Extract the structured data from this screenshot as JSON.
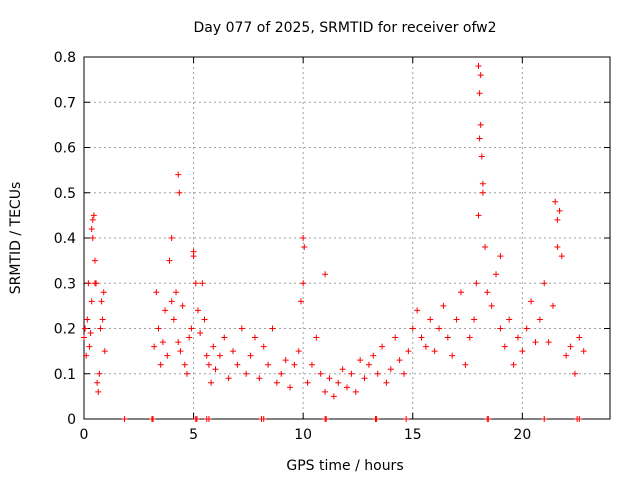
{
  "chart_data": {
    "type": "scatter",
    "title": "Day 077 of 2025, SRMTID for receiver ofw2",
    "xlabel": "GPS time / hours",
    "ylabel": "SRMTID / TECUs",
    "xlim": [
      0,
      24
    ],
    "ylim": [
      0,
      0.8
    ],
    "x_ticks": [
      0,
      5,
      10,
      15,
      20
    ],
    "x_tick_labels": [
      "0",
      "5",
      "10",
      "15",
      "20"
    ],
    "y_ticks": [
      0,
      0.1,
      0.2,
      0.3,
      0.4,
      0.5,
      0.6,
      0.7,
      0.8
    ],
    "y_tick_labels": [
      "0",
      "0.1",
      "0.2",
      "0.3",
      "0.4",
      "0.5",
      "0.6",
      "0.7",
      "0.8"
    ],
    "grid": true,
    "marker": "+",
    "color": "#ff0000",
    "series": [
      {
        "name": "SRMTID",
        "x": [
          0.0,
          0.05,
          0.1,
          0.15,
          0.2,
          0.25,
          0.3,
          0.35,
          0.4,
          0.45,
          0.5,
          0.55,
          0.6,
          0.65,
          0.7,
          0.75,
          0.8,
          0.85,
          0.9,
          0.95,
          3.2,
          3.3,
          3.4,
          3.5,
          3.6,
          3.7,
          3.8,
          3.9,
          4.0,
          4.1,
          4.2,
          4.3,
          4.4,
          4.5,
          4.6,
          4.7,
          4.8,
          4.9,
          5.0,
          5.1,
          5.2,
          5.3,
          5.4,
          5.5,
          5.6,
          5.7,
          5.8,
          5.9,
          6.0,
          6.2,
          6.4,
          6.6,
          6.8,
          7.0,
          7.2,
          7.4,
          7.6,
          7.8,
          8.0,
          8.2,
          8.4,
          8.6,
          8.8,
          9.0,
          9.2,
          9.4,
          9.6,
          9.8,
          10.0,
          10.2,
          10.4,
          10.6,
          10.8,
          11.0,
          11.2,
          11.4,
          11.6,
          11.8,
          12.0,
          12.2,
          12.4,
          12.6,
          12.8,
          13.0,
          13.2,
          13.4,
          13.6,
          13.8,
          14.0,
          14.2,
          14.4,
          14.6,
          14.8,
          15.0,
          15.2,
          15.4,
          15.6,
          15.8,
          16.0,
          16.2,
          16.4,
          16.6,
          16.8,
          17.0,
          17.2,
          17.4,
          17.6,
          17.8,
          17.9,
          18.0,
          18.05,
          18.1,
          18.2,
          18.3,
          18.4,
          18.6,
          18.8,
          19.0,
          19.2,
          19.4,
          19.6,
          19.8,
          20.0,
          20.2,
          20.4,
          20.6,
          20.8,
          21.0,
          21.2,
          21.4,
          21.6,
          21.7,
          21.8,
          22.0,
          22.2,
          22.4,
          22.6,
          22.8,
          0.35,
          0.4,
          0.5,
          4.3,
          4.35,
          1.85,
          10.0,
          10.05,
          18.0,
          18.05,
          18.1,
          18.15,
          18.2,
          21.5,
          21.6,
          9.9,
          11.0,
          5.0,
          4.0,
          19.0
        ],
        "y": [
          0.18,
          0.2,
          0.14,
          0.22,
          0.3,
          0.16,
          0.19,
          0.26,
          0.4,
          0.45,
          0.35,
          0.3,
          0.08,
          0.06,
          0.1,
          0.2,
          0.26,
          0.22,
          0.28,
          0.15,
          0.16,
          0.28,
          0.2,
          0.12,
          0.17,
          0.24,
          0.14,
          0.35,
          0.26,
          0.22,
          0.28,
          0.17,
          0.15,
          0.25,
          0.12,
          0.1,
          0.18,
          0.2,
          0.37,
          0.3,
          0.24,
          0.19,
          0.3,
          0.22,
          0.14,
          0.12,
          0.08,
          0.16,
          0.11,
          0.14,
          0.18,
          0.09,
          0.15,
          0.12,
          0.2,
          0.1,
          0.14,
          0.18,
          0.09,
          0.16,
          0.12,
          0.2,
          0.08,
          0.1,
          0.13,
          0.07,
          0.12,
          0.15,
          0.3,
          0.08,
          0.12,
          0.18,
          0.1,
          0.06,
          0.09,
          0.05,
          0.08,
          0.11,
          0.07,
          0.1,
          0.06,
          0.13,
          0.09,
          0.12,
          0.14,
          0.1,
          0.16,
          0.08,
          0.11,
          0.18,
          0.13,
          0.1,
          0.15,
          0.2,
          0.24,
          0.18,
          0.16,
          0.22,
          0.15,
          0.2,
          0.25,
          0.18,
          0.14,
          0.22,
          0.28,
          0.12,
          0.18,
          0.22,
          0.3,
          0.45,
          0.62,
          0.76,
          0.52,
          0.38,
          0.28,
          0.25,
          0.32,
          0.2,
          0.16,
          0.22,
          0.12,
          0.18,
          0.15,
          0.2,
          0.26,
          0.17,
          0.22,
          0.3,
          0.17,
          0.25,
          0.38,
          0.46,
          0.36,
          0.14,
          0.16,
          0.1,
          0.18,
          0.15,
          0.42,
          0.44,
          0.3,
          0.54,
          0.5,
          0.0,
          0.4,
          0.38,
          0.78,
          0.72,
          0.65,
          0.58,
          0.5,
          0.48,
          0.44,
          0.26,
          0.32,
          0.36,
          0.4,
          0.36
        ]
      }
    ],
    "zero_line_points_x": [
      3.1,
      3.15,
      5.1,
      5.15,
      5.6,
      5.7,
      8.1,
      8.2,
      11.0,
      11.05,
      13.3,
      13.35,
      14.7,
      18.4,
      18.45,
      21.0,
      22.5,
      22.6
    ]
  }
}
